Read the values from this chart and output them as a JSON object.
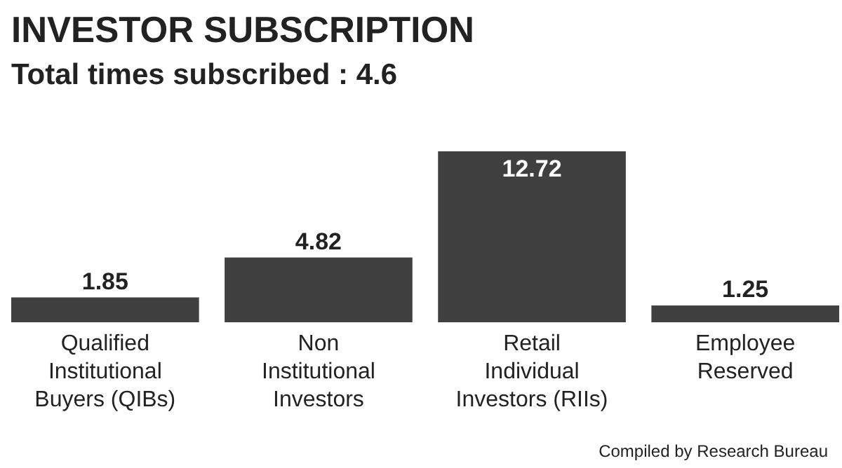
{
  "chart_data": {
    "type": "bar",
    "title": "INVESTOR SUBSCRIPTION",
    "subtitle": "Total times subscribed : 4.6",
    "categories": [
      "Qualified Institutional Buyers (QIBs)",
      "Non Institutional Investors",
      "Retail Individual Investors (RIIs)",
      "Employee Reserved"
    ],
    "values": [
      1.85,
      4.82,
      12.72,
      1.25
    ],
    "color": "#404040",
    "data_labels": true,
    "annotations": [
      "Compiled by Research Bureau"
    ]
  }
}
